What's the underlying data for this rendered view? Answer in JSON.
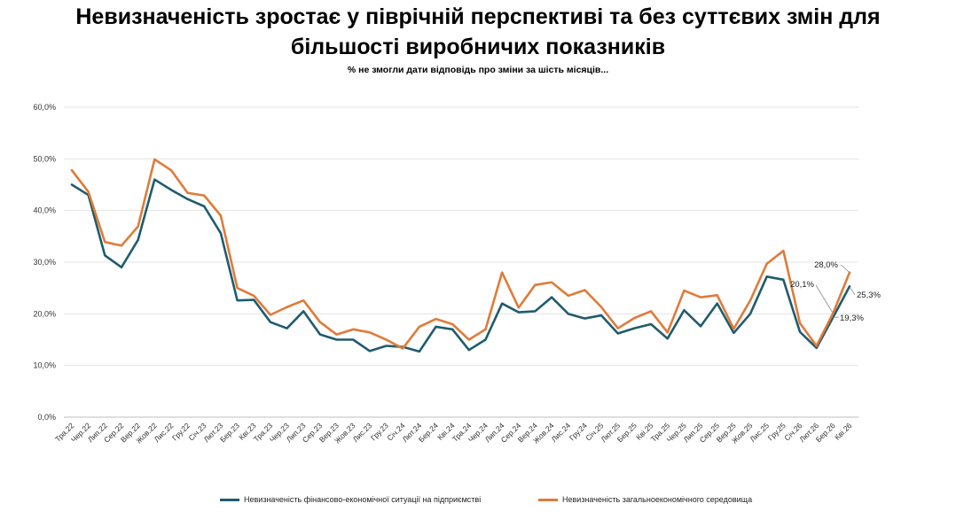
{
  "title_line1": "Невизначеність зростає у піврічній перспективі та без суттєвих змін для",
  "title_line2": "більшості виробничих показників",
  "subtitle": "% не змогли дати відповідь про зміни за шість місяців...",
  "chart_data": {
    "type": "line",
    "categories": [
      "Тра.22",
      "Чер.22",
      "Лип.22",
      "Сер.22",
      "Вер.22",
      "Жов.22",
      "Лис.22",
      "Гру.22",
      "Січ.23",
      "Лют.23",
      "Бер.23",
      "Кві.23",
      "Тра.23",
      "Чер.23",
      "Лип.23",
      "Сер.23",
      "Вер.23",
      "Жов.23",
      "Лис.23",
      "Гру.23",
      "Січ.24",
      "Лют.24",
      "Бер.24",
      "Кві.24",
      "Тра.24",
      "Чер.24",
      "Лип.24",
      "Сер.24",
      "Вер.24",
      "Жов.24",
      "Лис.24",
      "Гру.24",
      "Січ.25",
      "Лют.25",
      "Бер.25",
      "Кві.25",
      "Тра.25",
      "Чер.25",
      "Лип.25",
      "Сер.25",
      "Вер.25",
      "Жов.25",
      "Лис.25",
      "Гру.25",
      "Січ.26",
      "Лют.26",
      "Бер.26",
      "Кві.26"
    ],
    "series": [
      {
        "name": "Невизначеність фінансово-економічної ситуації на підприємстві",
        "color": "#1f5c6e",
        "values": [
          45.0,
          43.0,
          31.3,
          29.0,
          34.3,
          46.0,
          44.0,
          42.2,
          40.8,
          35.6,
          22.6,
          22.7,
          18.4,
          17.2,
          20.5,
          16.0,
          15.0,
          15.0,
          12.8,
          13.8,
          13.6,
          12.7,
          17.5,
          17.0,
          13.0,
          15.0,
          22.0,
          20.3,
          20.5,
          23.2,
          20.0,
          19.1,
          19.7,
          16.2,
          17.2,
          18.0,
          15.2,
          20.7,
          17.6,
          22.0,
          16.3,
          20.0,
          27.2,
          26.6,
          16.5,
          13.4,
          19.3,
          25.3
        ]
      },
      {
        "name": "Невизначеність загальноекономічного середовища",
        "color": "#e07b39",
        "values": [
          47.8,
          43.6,
          33.9,
          33.2,
          36.9,
          49.9,
          47.8,
          43.4,
          42.9,
          39.0,
          25.0,
          23.5,
          19.8,
          21.3,
          22.6,
          18.4,
          16.0,
          17.0,
          16.4,
          15.0,
          13.3,
          17.5,
          19.0,
          18.0,
          15.0,
          17.0,
          28.0,
          21.2,
          25.6,
          26.1,
          23.5,
          24.6,
          21.3,
          17.2,
          19.2,
          20.5,
          16.4,
          24.5,
          23.2,
          23.6,
          17.1,
          22.6,
          29.7,
          32.2,
          18.2,
          13.8,
          20.1,
          28.0
        ]
      }
    ],
    "ylim": [
      0,
      60
    ],
    "yticks": [
      "0,0%",
      "10,0%",
      "20,0%",
      "30,0%",
      "40,0%",
      "50,0%",
      "60,0%"
    ],
    "grid": true,
    "legend_position": "bottom",
    "annotations": [
      "28,0%",
      "20,1%",
      "25,3%",
      "19,3%"
    ]
  }
}
